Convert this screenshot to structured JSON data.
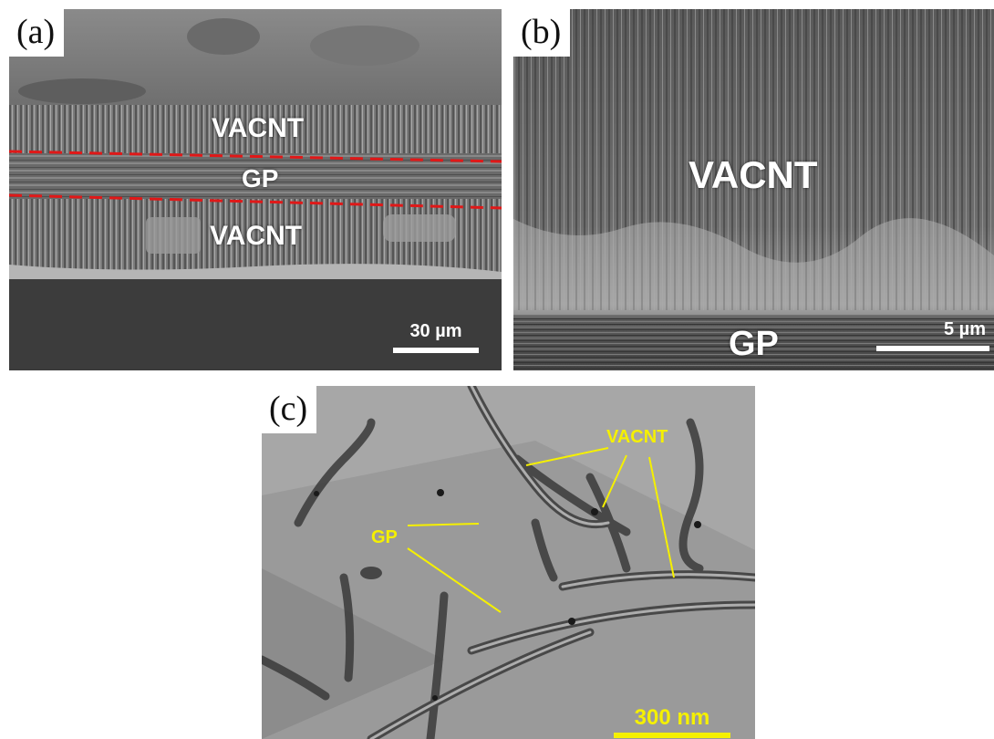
{
  "panel_a": {
    "label": "(a)",
    "layer_top": "VACNT",
    "layer_mid": "GP",
    "layer_bottom": "VACNT",
    "scale_bar": "30 µm",
    "line_color": "#e01818"
  },
  "panel_b": {
    "label": "(b)",
    "layer_main": "VACNT",
    "layer_base": "GP",
    "scale_bar": "5 µm"
  },
  "panel_c": {
    "label": "(c)",
    "annotation_vacnt": "VACNT",
    "annotation_gp": "GP",
    "scale_bar": "300 nm",
    "annotation_color": "#f5f000"
  }
}
